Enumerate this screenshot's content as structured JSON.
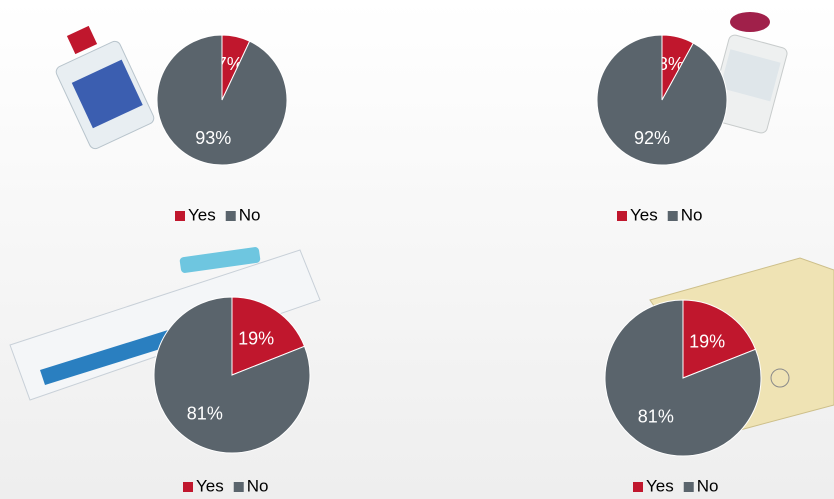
{
  "chart_data": [
    {
      "type": "pie",
      "categories": [
        "Yes",
        "No"
      ],
      "values": [
        7,
        93
      ],
      "value_labels": [
        "7%",
        "93%"
      ],
      "colors": [
        "#c0172d",
        "#5a646c"
      ]
    },
    {
      "type": "pie",
      "categories": [
        "Yes",
        "No"
      ],
      "values": [
        8,
        92
      ],
      "value_labels": [
        "8%",
        "92%"
      ],
      "colors": [
        "#c0172d",
        "#5a646c"
      ]
    },
    {
      "type": "pie",
      "categories": [
        "Yes",
        "No"
      ],
      "values": [
        19,
        81
      ],
      "value_labels": [
        "19%",
        "81%"
      ],
      "colors": [
        "#c0172d",
        "#5a646c"
      ]
    },
    {
      "type": "pie",
      "categories": [
        "Yes",
        "No"
      ],
      "values": [
        19,
        81
      ],
      "value_labels": [
        "19%",
        "81%"
      ],
      "colors": [
        "#c0172d",
        "#5a646c"
      ]
    }
  ]
}
